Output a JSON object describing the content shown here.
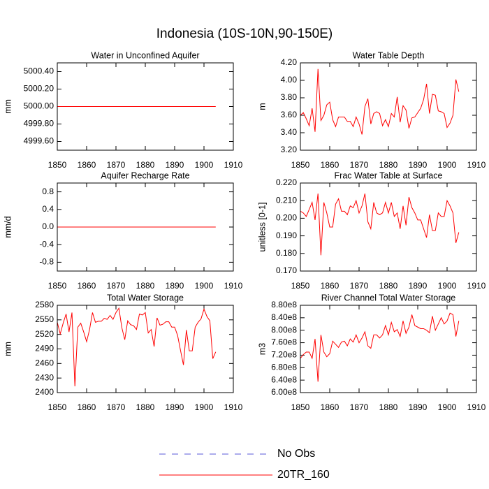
{
  "title": "Indonesia (10S-10N,90-150E)",
  "legend": [
    {
      "name": "No Obs",
      "color": "#5a5ad8",
      "linestyle": "dashed"
    },
    {
      "name": "20TR_160",
      "color": "#ff0000",
      "linestyle": "solid"
    }
  ],
  "chart_data": [
    {
      "type": "line",
      "title": "Water in Unconfined Aquifer",
      "ylabel": "mm",
      "x": [
        1850,
        1851,
        1852,
        1853,
        1854,
        1855,
        1856,
        1857,
        1858,
        1859,
        1860,
        1861,
        1862,
        1863,
        1864,
        1865,
        1866,
        1867,
        1868,
        1869,
        1870,
        1871,
        1872,
        1873,
        1874,
        1875,
        1876,
        1877,
        1878,
        1879,
        1880,
        1881,
        1882,
        1883,
        1884,
        1885,
        1886,
        1887,
        1888,
        1889,
        1890,
        1891,
        1892,
        1893,
        1894,
        1895,
        1896,
        1897,
        1898,
        1899,
        1900,
        1901,
        1902,
        1903,
        1904
      ],
      "series": [
        {
          "color": "#ff0000",
          "values": [
            5000,
            5000,
            5000,
            5000,
            5000,
            5000,
            5000,
            5000,
            5000,
            5000,
            5000,
            5000,
            5000,
            5000,
            5000,
            5000,
            5000,
            5000,
            5000,
            5000,
            5000,
            5000,
            5000,
            5000,
            5000,
            5000,
            5000,
            5000,
            5000,
            5000,
            5000,
            5000,
            5000,
            5000,
            5000,
            5000,
            5000,
            5000,
            5000,
            5000,
            5000,
            5000,
            5000,
            5000,
            5000,
            5000,
            5000,
            5000,
            5000,
            5000,
            5000,
            5000,
            5000,
            5000,
            5000
          ]
        }
      ],
      "xlim": [
        1850,
        1910
      ],
      "xticks": [
        1850,
        1860,
        1870,
        1880,
        1890,
        1900,
        1910
      ],
      "ylim": [
        4999.5,
        5000.5
      ],
      "yticks": [
        {
          "value": 4999.6,
          "label": "4999.60"
        },
        {
          "value": 4999.8,
          "label": "4999.80"
        },
        {
          "value": 5000,
          "label": "5000.00"
        },
        {
          "value": 5000.2,
          "label": "5000.20"
        },
        {
          "value": 5000.4,
          "label": "5000.40"
        }
      ]
    },
    {
      "type": "line",
      "title": "Water Table Depth",
      "ylabel": "m",
      "x": [
        1850,
        1851,
        1852,
        1853,
        1854,
        1855,
        1856,
        1857,
        1858,
        1859,
        1860,
        1861,
        1862,
        1863,
        1864,
        1865,
        1866,
        1867,
        1868,
        1869,
        1870,
        1871,
        1872,
        1873,
        1874,
        1875,
        1876,
        1877,
        1878,
        1879,
        1880,
        1881,
        1882,
        1883,
        1884,
        1885,
        1886,
        1887,
        1888,
        1889,
        1890,
        1891,
        1892,
        1893,
        1894,
        1895,
        1896,
        1897,
        1898,
        1899,
        1900,
        1901,
        1902,
        1903,
        1904
      ],
      "series": [
        {
          "color": "#ff0000",
          "values": [
            3.6,
            3.63,
            3.56,
            3.48,
            3.68,
            3.41,
            4.13,
            3.54,
            3.6,
            3.72,
            3.75,
            3.55,
            3.47,
            3.58,
            3.58,
            3.58,
            3.53,
            3.53,
            3.47,
            3.58,
            3.5,
            3.38,
            3.7,
            3.79,
            3.5,
            3.62,
            3.64,
            3.62,
            3.48,
            3.55,
            3.47,
            3.62,
            3.58,
            3.81,
            3.52,
            3.71,
            3.66,
            3.45,
            3.57,
            3.58,
            3.63,
            3.68,
            3.78,
            3.96,
            3.62,
            3.84,
            3.83,
            3.65,
            3.64,
            3.62,
            3.46,
            3.51,
            3.6,
            4.01,
            3.87
          ]
        }
      ],
      "xlim": [
        1850,
        1910
      ],
      "xticks": [
        1850,
        1860,
        1870,
        1880,
        1890,
        1900,
        1910
      ],
      "ylim": [
        3.2,
        4.2
      ],
      "yticks": [
        {
          "value": 3.2,
          "label": "3.20"
        },
        {
          "value": 3.4,
          "label": "3.40"
        },
        {
          "value": 3.6,
          "label": "3.60"
        },
        {
          "value": 3.8,
          "label": "3.80"
        },
        {
          "value": 4.0,
          "label": "4.00"
        },
        {
          "value": 4.2,
          "label": "4.20"
        }
      ]
    },
    {
      "type": "line",
      "title": "Aquifer Recharge Rate",
      "ylabel": "mm/d",
      "x": [
        1850,
        1851,
        1852,
        1853,
        1854,
        1855,
        1856,
        1857,
        1858,
        1859,
        1860,
        1861,
        1862,
        1863,
        1864,
        1865,
        1866,
        1867,
        1868,
        1869,
        1870,
        1871,
        1872,
        1873,
        1874,
        1875,
        1876,
        1877,
        1878,
        1879,
        1880,
        1881,
        1882,
        1883,
        1884,
        1885,
        1886,
        1887,
        1888,
        1889,
        1890,
        1891,
        1892,
        1893,
        1894,
        1895,
        1896,
        1897,
        1898,
        1899,
        1900,
        1901,
        1902,
        1903,
        1904
      ],
      "series": [
        {
          "color": "#ff0000",
          "values": [
            0,
            0,
            0,
            0,
            0,
            0,
            0,
            0,
            0,
            0,
            0,
            0,
            0,
            0,
            0,
            0,
            0,
            0,
            0,
            0,
            0,
            0,
            0,
            0,
            0,
            0,
            0,
            0,
            0,
            0,
            0,
            0,
            0,
            0,
            0,
            0,
            0,
            0,
            0,
            0,
            0,
            0,
            0,
            0,
            0,
            0,
            0,
            0,
            0,
            0,
            0,
            0,
            0,
            0,
            0
          ]
        }
      ],
      "xlim": [
        1850,
        1910
      ],
      "xticks": [
        1850,
        1860,
        1870,
        1880,
        1890,
        1900,
        1910
      ],
      "ylim": [
        -1,
        1
      ],
      "yticks": [
        -0.8,
        -0.4,
        {
          "value": 0,
          "label": "0.0"
        },
        0.4,
        0.8
      ]
    },
    {
      "type": "line",
      "title": "Frac Water Table at Surface",
      "ylabel": "unitless [0-1]",
      "x": [
        1850,
        1851,
        1852,
        1853,
        1854,
        1855,
        1856,
        1857,
        1858,
        1859,
        1860,
        1861,
        1862,
        1863,
        1864,
        1865,
        1866,
        1867,
        1868,
        1869,
        1870,
        1871,
        1872,
        1873,
        1874,
        1875,
        1876,
        1877,
        1878,
        1879,
        1880,
        1881,
        1882,
        1883,
        1884,
        1885,
        1886,
        1887,
        1888,
        1889,
        1890,
        1891,
        1892,
        1893,
        1894,
        1895,
        1896,
        1897,
        1898,
        1899,
        1900,
        1901,
        1902,
        1903,
        1904
      ],
      "series": [
        {
          "color": "#ff0000",
          "values": [
            0.204,
            0.203,
            0.201,
            0.205,
            0.209,
            0.199,
            0.214,
            0.179,
            0.209,
            0.203,
            0.195,
            0.195,
            0.208,
            0.211,
            0.204,
            0.204,
            0.202,
            0.207,
            0.206,
            0.21,
            0.203,
            0.207,
            0.214,
            0.198,
            0.194,
            0.209,
            0.203,
            0.202,
            0.203,
            0.209,
            0.203,
            0.209,
            0.201,
            0.203,
            0.194,
            0.207,
            0.196,
            0.212,
            0.206,
            0.203,
            0.199,
            0.199,
            0.194,
            0.189,
            0.202,
            0.193,
            0.193,
            0.203,
            0.201,
            0.201,
            0.21,
            0.207,
            0.203,
            0.186,
            0.192
          ]
        }
      ],
      "xlim": [
        1850,
        1910
      ],
      "xticks": [
        1850,
        1860,
        1870,
        1880,
        1890,
        1900,
        1910
      ],
      "ylim": [
        0.17,
        0.22
      ],
      "yticks": [
        {
          "value": 0.17,
          "label": "0.170"
        },
        {
          "value": 0.18,
          "label": "0.180"
        },
        {
          "value": 0.19,
          "label": "0.190"
        },
        {
          "value": 0.2,
          "label": "0.200"
        },
        {
          "value": 0.21,
          "label": "0.210"
        },
        {
          "value": 0.22,
          "label": "0.220"
        }
      ]
    },
    {
      "type": "line",
      "title": "Total Water Storage",
      "ylabel": "mm",
      "x": [
        1850,
        1851,
        1852,
        1853,
        1854,
        1855,
        1856,
        1857,
        1858,
        1859,
        1860,
        1861,
        1862,
        1863,
        1864,
        1865,
        1866,
        1867,
        1868,
        1869,
        1870,
        1871,
        1872,
        1873,
        1874,
        1875,
        1876,
        1877,
        1878,
        1879,
        1880,
        1881,
        1882,
        1883,
        1884,
        1885,
        1886,
        1887,
        1888,
        1889,
        1890,
        1891,
        1892,
        1893,
        1894,
        1895,
        1896,
        1897,
        1898,
        1899,
        1900,
        1901,
        1902,
        1903,
        1904
      ],
      "series": [
        {
          "color": "#ff0000",
          "values": [
            2545,
            2521,
            2543,
            2562,
            2525,
            2565,
            2413,
            2535,
            2543,
            2525,
            2505,
            2530,
            2565,
            2545,
            2547,
            2547,
            2553,
            2551,
            2559,
            2551,
            2565,
            2574,
            2534,
            2509,
            2548,
            2540,
            2538,
            2530,
            2562,
            2560,
            2565,
            2523,
            2530,
            2495,
            2554,
            2539,
            2541,
            2546,
            2546,
            2535,
            2535,
            2518,
            2487,
            2457,
            2529,
            2486,
            2486,
            2535,
            2545,
            2552,
            2572,
            2557,
            2548,
            2470,
            2484
          ]
        }
      ],
      "xlim": [
        1850,
        1910
      ],
      "xticks": [
        1850,
        1860,
        1870,
        1880,
        1890,
        1900,
        1910
      ],
      "ylim": [
        2400,
        2580
      ],
      "yticks": [
        2400,
        2430,
        2460,
        2490,
        2520,
        2550,
        2580
      ]
    },
    {
      "type": "line",
      "title": "River Channel Total Water Storage",
      "ylabel": "m3",
      "x": [
        1850,
        1851,
        1852,
        1853,
        1854,
        1855,
        1856,
        1857,
        1858,
        1859,
        1860,
        1861,
        1862,
        1863,
        1864,
        1865,
        1866,
        1867,
        1868,
        1869,
        1870,
        1871,
        1872,
        1873,
        1874,
        1875,
        1876,
        1877,
        1878,
        1879,
        1880,
        1881,
        1882,
        1883,
        1884,
        1885,
        1886,
        1887,
        1888,
        1889,
        1890,
        1891,
        1892,
        1893,
        1894,
        1895,
        1896,
        1897,
        1898,
        1899,
        1900,
        1901,
        1902,
        1903,
        1904
      ],
      "series": [
        {
          "color": "#ff0000",
          "values": [
            710000000.0,
            722000000.0,
            730000000.0,
            730000000.0,
            710000000.0,
            772000000.0,
            635000000.0,
            785000000.0,
            730000000.0,
            715000000.0,
            725000000.0,
            765000000.0,
            755000000.0,
            745000000.0,
            762000000.0,
            765000000.0,
            750000000.0,
            772000000.0,
            762000000.0,
            785000000.0,
            760000000.0,
            775000000.0,
            795000000.0,
            750000000.0,
            742000000.0,
            785000000.0,
            785000000.0,
            775000000.0,
            785000000.0,
            815000000.0,
            785000000.0,
            825000000.0,
            795000000.0,
            802000000.0,
            780000000.0,
            830000000.0,
            790000000.0,
            810000000.0,
            850000000.0,
            815000000.0,
            810000000.0,
            805000000.0,
            805000000.0,
            800000000.0,
            792000000.0,
            845000000.0,
            800000000.0,
            820000000.0,
            840000000.0,
            820000000.0,
            830000000.0,
            855000000.0,
            850000000.0,
            780000000.0,
            830000000.0
          ]
        }
      ],
      "xlim": [
        1850,
        1910
      ],
      "xticks": [
        1850,
        1860,
        1870,
        1880,
        1890,
        1900,
        1910
      ],
      "ylim": [
        600000000.0,
        880000000.0
      ],
      "yticks": [
        {
          "value": 600000000.0,
          "label": "6.00e8"
        },
        {
          "value": 640000000.0,
          "label": "6.40e8"
        },
        {
          "value": 680000000.0,
          "label": "6.80e8"
        },
        {
          "value": 720000000.0,
          "label": "7.20e8"
        },
        {
          "value": 760000000.0,
          "label": "7.60e8"
        },
        {
          "value": 800000000.0,
          "label": "8.00e8"
        },
        {
          "value": 840000000.0,
          "label": "8.40e8"
        },
        {
          "value": 880000000.0,
          "label": "8.80e8"
        }
      ]
    }
  ]
}
